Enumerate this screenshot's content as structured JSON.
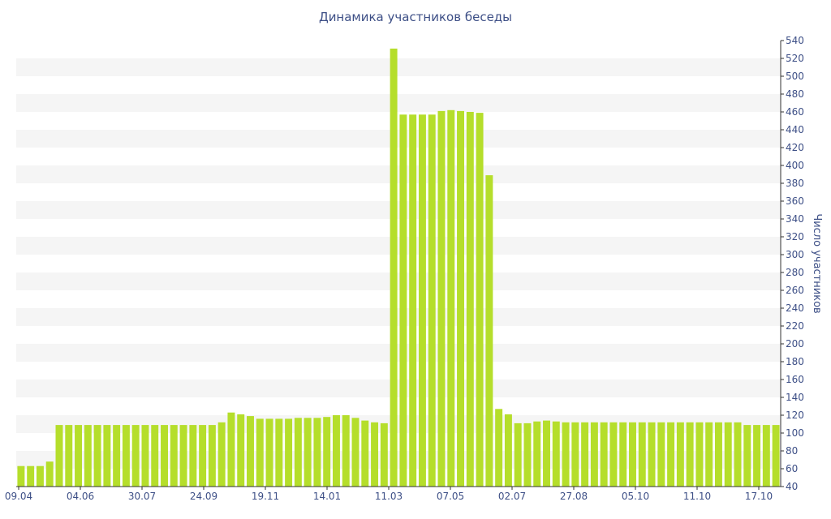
{
  "colors": {
    "bar": "#b5de2b",
    "band": "#f5f5f5",
    "text": "#3d4f86",
    "axis": "#333333"
  },
  "chart_data": {
    "type": "bar",
    "title": "Динамика участников беседы",
    "xlabel": "",
    "ylabel": "Число участников",
    "ylim": [
      40,
      540
    ],
    "ytick_step": 20,
    "grid": "alternating horizontal bands",
    "yaxis_position": "right",
    "xtick_labels": [
      "09.04",
      "04.06",
      "30.07",
      "24.09",
      "19.11",
      "14.01",
      "11.03",
      "07.05",
      "02.07",
      "27.08",
      "05.10",
      "11.10",
      "17.10"
    ],
    "values": [
      63,
      63,
      63,
      68,
      109,
      109,
      109,
      109,
      109,
      109,
      109,
      109,
      109,
      109,
      109,
      109,
      109,
      109,
      109,
      109,
      109,
      112,
      123,
      121,
      119,
      116,
      116,
      116,
      116,
      117,
      117,
      117,
      118,
      120,
      120,
      117,
      114,
      112,
      111,
      531,
      457,
      457,
      457,
      457,
      461,
      462,
      461,
      460,
      459,
      389,
      127,
      121,
      111,
      111,
      113,
      114,
      113,
      112,
      112,
      112,
      112,
      112,
      112,
      112,
      112,
      112,
      112,
      112,
      112,
      112,
      112,
      112,
      112,
      112,
      112,
      112,
      109,
      109,
      109,
      109
    ]
  }
}
